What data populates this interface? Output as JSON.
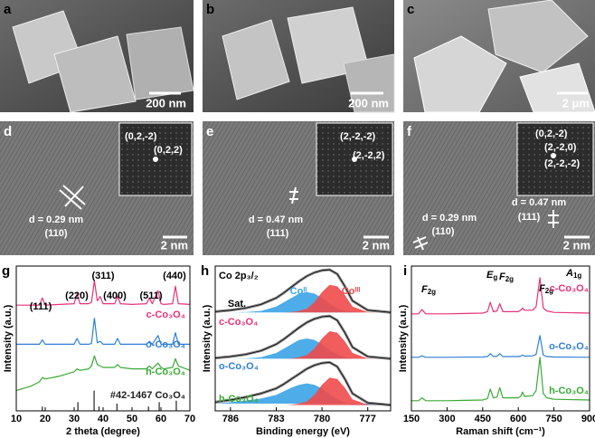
{
  "panels": [
    {
      "label": "a",
      "scale_bar": "200 nm"
    },
    {
      "label": "b",
      "scale_bar": "200 nm"
    },
    {
      "label": "c",
      "scale_bar": "2 μm"
    },
    {
      "label": "d",
      "scale_bar": "2 nm",
      "texts": [
        "(0,2,-2)",
        "(0,2,2)",
        "d = 0.29 nm",
        "(110)"
      ]
    },
    {
      "label": "e",
      "scale_bar": "2 nm",
      "texts": [
        "(2,-2,-2)",
        "(2,-2,2)",
        "d = 0.47 nm",
        "(111)"
      ]
    },
    {
      "label": "f",
      "scale_bar": "2 nm",
      "texts": [
        "(0,2,-2)",
        "(2,-2,0)",
        "(2,-2,-2)",
        "d = 0.47 nm",
        "(111)",
        "d = 0.29 nm",
        "(110)"
      ]
    }
  ],
  "chart_data": [
    {
      "type": "line",
      "panel": "g",
      "xlabel": "2 theta (degree)",
      "ylabel": "Intensity (a.u.)",
      "xlim": [
        10,
        70
      ],
      "xticks": [
        10,
        20,
        30,
        40,
        50,
        60,
        70
      ],
      "ylim": [
        0,
        10
      ],
      "x": [
        10,
        15,
        18,
        19,
        20,
        25,
        30,
        31,
        32,
        35,
        36,
        37,
        38,
        39,
        40,
        44,
        45,
        46,
        50,
        55,
        56,
        57,
        59,
        60,
        61,
        64,
        65,
        66,
        70
      ],
      "series": [
        {
          "name": "c-Co₃O₄",
          "color": "#e8317a",
          "values": [
            7.3,
            7.3,
            7.3,
            7.8,
            7.3,
            7.35,
            7.4,
            8.1,
            7.4,
            7.4,
            7.5,
            9.0,
            7.6,
            7.9,
            7.4,
            7.4,
            7.9,
            7.4,
            7.35,
            7.4,
            7.8,
            7.4,
            8.3,
            7.4,
            7.35,
            7.4,
            8.6,
            7.4,
            7.35
          ]
        },
        {
          "name": "o-Co₃O₄",
          "color": "#2f7fd6",
          "values": [
            4.6,
            4.6,
            4.6,
            4.9,
            4.6,
            4.6,
            4.6,
            5.0,
            4.6,
            4.6,
            4.65,
            6.4,
            4.7,
            4.8,
            4.6,
            4.6,
            5.0,
            4.6,
            4.6,
            4.6,
            4.8,
            4.6,
            5.2,
            4.6,
            4.6,
            4.6,
            5.4,
            4.6,
            4.6
          ]
        },
        {
          "name": "h-Co₃O₄",
          "color": "#3aaa35",
          "values": [
            1.4,
            1.7,
            2.0,
            2.3,
            2.2,
            2.4,
            2.7,
            2.9,
            2.8,
            2.9,
            3.1,
            3.8,
            3.2,
            3.1,
            3.0,
            3.0,
            3.2,
            3.0,
            2.9,
            2.9,
            3.1,
            2.9,
            3.3,
            3.0,
            2.9,
            3.0,
            3.6,
            3.1,
            2.8
          ]
        }
      ],
      "reference": {
        "name": "#42-1467 Co₃O₄",
        "color": "#222222",
        "x": [
          19,
          31.3,
          36.9,
          38.6,
          44.8,
          55.7,
          59.4,
          65.3
        ],
        "values": [
          0.3,
          0.6,
          1.4,
          0.3,
          0.5,
          0.3,
          0.6,
          0.7
        ]
      },
      "annotations": [
        "(111)",
        "(220)",
        "(311)",
        "(400)",
        "(511)",
        "(440)"
      ]
    },
    {
      "type": "xps",
      "panel": "h",
      "title": "Co 2p₃/₂",
      "xlabel": "Binding energy (eV)",
      "ylabel": "Intensity (a.u.)",
      "xlim": [
        787,
        775.5
      ],
      "xticks": [
        786,
        783,
        780,
        777
      ],
      "ylim": [
        0,
        10
      ],
      "x": [
        787,
        786,
        785,
        784,
        783,
        782.5,
        782,
        781.5,
        781,
        780.5,
        780,
        779.5,
        779,
        778.5,
        778,
        777,
        776,
        775.5
      ],
      "satellite_label": "Sat.",
      "component_labels": [
        "Coᴵᴵ",
        "Coᴵᴵᴵ"
      ],
      "component_colors": [
        "#3ba3e6",
        "#ef4a4a"
      ],
      "series": [
        {
          "name": "c-Co₃O₄",
          "color": "#8a8a8a",
          "label_color": "#e8317a",
          "values": [
            6.85,
            6.95,
            7.1,
            7.35,
            7.8,
            8.15,
            8.55,
            8.95,
            9.3,
            9.55,
            9.7,
            9.75,
            9.45,
            8.6,
            7.6,
            6.95,
            6.85,
            6.8
          ],
          "co_ii": [
            6.8,
            6.8,
            6.82,
            6.9,
            7.2,
            7.5,
            7.8,
            8.1,
            8.2,
            8.1,
            7.8,
            7.4,
            7.1,
            6.9,
            6.82,
            6.8,
            6.8,
            6.8
          ],
          "co_iii": [
            6.8,
            6.8,
            6.8,
            6.8,
            6.8,
            6.8,
            6.82,
            6.9,
            7.05,
            7.5,
            8.2,
            8.7,
            8.6,
            8.0,
            7.2,
            6.82,
            6.8,
            6.8
          ]
        },
        {
          "name": "o-Co₃O₄",
          "color": "#8a8a8a",
          "label_color": "#2f7fd6",
          "values": [
            3.65,
            3.75,
            3.9,
            4.15,
            4.6,
            4.95,
            5.35,
            5.75,
            6.1,
            6.35,
            6.5,
            6.55,
            6.25,
            5.4,
            4.4,
            3.75,
            3.65,
            3.6
          ],
          "co_ii": [
            3.6,
            3.6,
            3.62,
            3.7,
            4.0,
            4.3,
            4.6,
            4.9,
            5.0,
            4.9,
            4.6,
            4.2,
            3.9,
            3.7,
            3.62,
            3.6,
            3.6,
            3.6
          ],
          "co_iii": [
            3.6,
            3.6,
            3.6,
            3.6,
            3.6,
            3.6,
            3.62,
            3.7,
            3.85,
            4.3,
            5.0,
            5.5,
            5.4,
            4.8,
            4.0,
            3.62,
            3.6,
            3.6
          ]
        },
        {
          "name": "h-Co₃O₄",
          "color": "#8a8a8a",
          "label_color": "#3aaa35",
          "values": [
            0.6,
            0.75,
            0.95,
            1.2,
            1.55,
            1.85,
            2.2,
            2.55,
            2.9,
            3.15,
            3.3,
            3.35,
            3.05,
            2.2,
            1.2,
            0.55,
            0.45,
            0.4
          ],
          "co_ii": [
            0.5,
            0.6,
            0.7,
            0.85,
            1.1,
            1.35,
            1.6,
            1.8,
            1.9,
            1.8,
            1.55,
            1.15,
            0.8,
            0.55,
            0.42,
            0.4,
            0.4,
            0.4
          ],
          "co_iii": [
            0.4,
            0.4,
            0.4,
            0.4,
            0.4,
            0.4,
            0.42,
            0.5,
            0.65,
            1.1,
            1.8,
            2.3,
            2.2,
            1.6,
            0.8,
            0.42,
            0.4,
            0.4
          ]
        }
      ]
    },
    {
      "type": "line",
      "panel": "i",
      "xlabel": "Raman shift (cm⁻¹)",
      "ylabel": "Intensity (a.u.)",
      "xlim": [
        150,
        900
      ],
      "xticks": [
        150,
        300,
        450,
        600,
        750,
        900
      ],
      "ylim": [
        0,
        10
      ],
      "x": [
        150,
        180,
        194,
        210,
        300,
        450,
        470,
        482,
        495,
        510,
        522,
        535,
        600,
        610,
        618,
        626,
        660,
        675,
        691,
        705,
        720,
        750,
        900
      ],
      "series": [
        {
          "name": "c-Co₃O₄",
          "color": "#e8317a",
          "values": [
            6.7,
            6.7,
            7.0,
            6.7,
            6.7,
            6.75,
            6.85,
            7.5,
            6.85,
            6.9,
            7.4,
            6.85,
            6.85,
            6.95,
            7.1,
            6.95,
            6.95,
            7.2,
            9.2,
            7.1,
            6.9,
            6.8,
            6.75
          ]
        },
        {
          "name": "o-Co₃O₄",
          "color": "#2f7fd6",
          "values": [
            3.7,
            3.7,
            3.8,
            3.7,
            3.7,
            3.72,
            3.75,
            3.95,
            3.75,
            3.78,
            3.95,
            3.75,
            3.75,
            3.78,
            3.85,
            3.78,
            3.8,
            3.9,
            5.2,
            3.85,
            3.75,
            3.72,
            3.7
          ]
        },
        {
          "name": "h-Co₃O₄",
          "color": "#3aaa35",
          "values": [
            0.7,
            0.7,
            0.9,
            0.7,
            0.7,
            0.75,
            0.85,
            1.5,
            0.9,
            0.95,
            1.6,
            0.9,
            0.9,
            1.0,
            1.3,
            1.0,
            1.05,
            1.4,
            3.7,
            1.2,
            0.9,
            0.8,
            0.75
          ]
        }
      ],
      "annotations": [
        {
          "symbol": "F",
          "sub": "2g"
        },
        {
          "symbol": "E",
          "sub": "g"
        },
        {
          "symbol": "F",
          "sub": "2g"
        },
        {
          "symbol": "F",
          "sub": "2g"
        },
        {
          "symbol": "A",
          "sub": "1g"
        }
      ]
    }
  ]
}
